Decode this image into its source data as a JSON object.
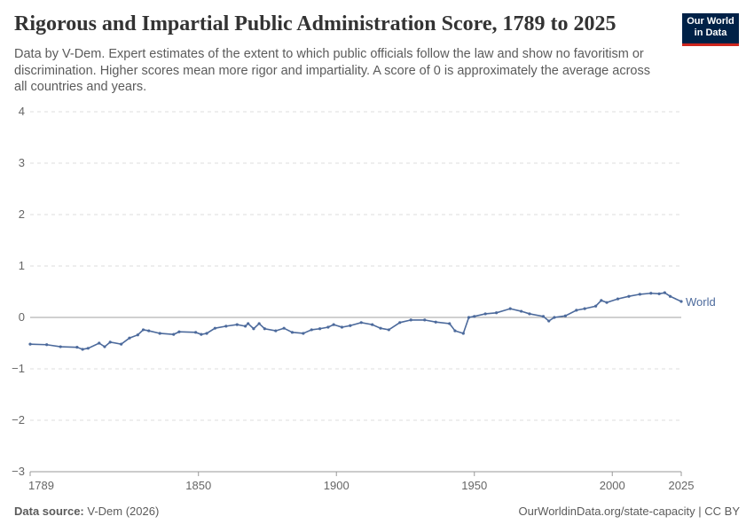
{
  "header": {
    "title": "Rigorous and Impartial Public Administration Score, 1789 to 2025",
    "subtitle": "Data by V-Dem. Expert estimates of the extent to which public officials follow the law and show no favoritism or discrimination. Higher scores mean more rigor and impartiality. A score of 0 is approximately the average across all countries and years.",
    "logo": "Our World in Data"
  },
  "footer": {
    "source_label": "Data source:",
    "source": "V-Dem (2026)",
    "url": "OurWorldinData.org/state-capacity | CC BY"
  },
  "colors": {
    "series": "#4c6a9c",
    "grid": "#dddddd",
    "zero": "#a0a0a0"
  },
  "chart_data": {
    "type": "line",
    "title": "Rigorous and Impartial Public Administration Score, 1789 to 2025",
    "xlim": [
      1789,
      2025
    ],
    "ylim": [
      -3,
      4
    ],
    "xticks": [
      1789,
      1850,
      1900,
      1950,
      2000,
      2025
    ],
    "yticks": [
      -3,
      -2,
      -1,
      0,
      1,
      2,
      3,
      4
    ],
    "grid": "horizontal dashed",
    "legend": "end-of-line label",
    "series": [
      {
        "name": "World",
        "x": [
          1789,
          1795,
          1800,
          1806,
          1808,
          1810,
          1814,
          1816,
          1818,
          1822,
          1825,
          1828,
          1830,
          1832,
          1836,
          1841,
          1843,
          1849,
          1851,
          1853,
          1856,
          1860,
          1864,
          1867,
          1868,
          1870,
          1872,
          1874,
          1878,
          1881,
          1884,
          1888,
          1891,
          1894,
          1897,
          1899,
          1902,
          1905,
          1909,
          1913,
          1916,
          1919,
          1923,
          1927,
          1932,
          1936,
          1941,
          1943,
          1946,
          1948,
          1950,
          1954,
          1958,
          1963,
          1967,
          1970,
          1975,
          1977,
          1979,
          1983,
          1987,
          1990,
          1994,
          1996,
          1998,
          2002,
          2006,
          2010,
          2014,
          2017,
          2019,
          2021,
          2025
        ],
        "y": [
          -0.52,
          -0.53,
          -0.57,
          -0.58,
          -0.62,
          -0.6,
          -0.5,
          -0.57,
          -0.48,
          -0.52,
          -0.4,
          -0.34,
          -0.24,
          -0.26,
          -0.31,
          -0.33,
          -0.28,
          -0.29,
          -0.33,
          -0.31,
          -0.21,
          -0.17,
          -0.14,
          -0.17,
          -0.12,
          -0.22,
          -0.12,
          -0.22,
          -0.26,
          -0.21,
          -0.29,
          -0.31,
          -0.24,
          -0.22,
          -0.19,
          -0.14,
          -0.19,
          -0.16,
          -0.1,
          -0.14,
          -0.21,
          -0.24,
          -0.1,
          -0.05,
          -0.05,
          -0.09,
          -0.12,
          -0.26,
          -0.31,
          0.0,
          0.02,
          0.07,
          0.09,
          0.17,
          0.12,
          0.07,
          0.02,
          -0.07,
          0.0,
          0.03,
          0.14,
          0.17,
          0.22,
          0.33,
          0.29,
          0.36,
          0.41,
          0.45,
          0.47,
          0.46,
          0.48,
          0.41,
          0.31
        ]
      }
    ]
  }
}
